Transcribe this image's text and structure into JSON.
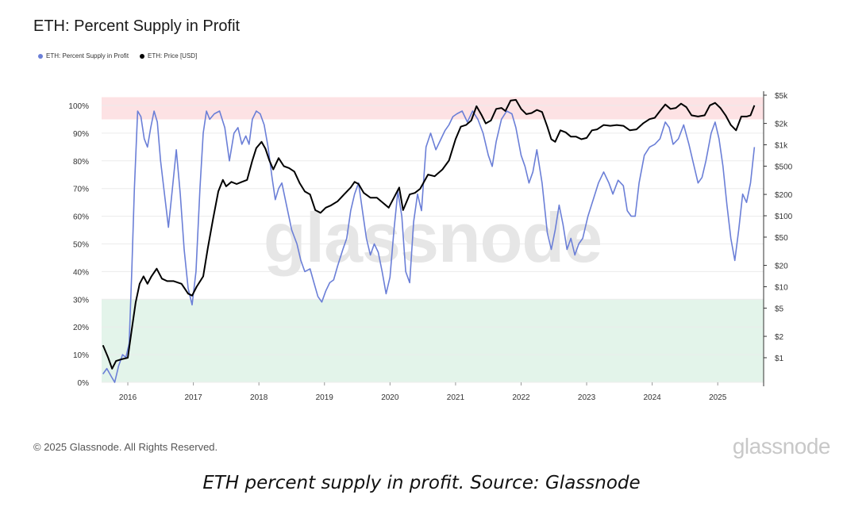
{
  "header": {
    "title": "ETH: Percent Supply in Profit"
  },
  "legend": [
    {
      "label": "ETH: Percent Supply in Profit",
      "color": "#6b7fd7"
    },
    {
      "label": "ETH: Price [USD]",
      "color": "#000000"
    }
  ],
  "watermark": "glassnode",
  "footer": {
    "copyright": "© 2025 Glassnode. All Rights Reserved.",
    "brand": "glassnode",
    "caption": "ETH percent supply in profit. Source: Glassnode"
  },
  "colors": {
    "profit_line": "#6b7fd7",
    "price_line": "#000000",
    "high_band": "#fde2e4",
    "low_band": "#e3f4ea"
  },
  "chart_data": {
    "type": "line",
    "x_range": [
      2015.6,
      2025.7
    ],
    "x_ticks": [
      "2016",
      "2017",
      "2018",
      "2019",
      "2020",
      "2021",
      "2022",
      "2023",
      "2024",
      "2025"
    ],
    "y_left_range": [
      0,
      100
    ],
    "y_left_ticks": [
      "0%",
      "10%",
      "20%",
      "30%",
      "40%",
      "50%",
      "60%",
      "70%",
      "80%",
      "90%",
      "100%"
    ],
    "y_right_scale": "log",
    "y_right_range": [
      0.45,
      5000
    ],
    "y_right_ticks": [
      {
        "label": "$1",
        "value": 1
      },
      {
        "label": "$2",
        "value": 2
      },
      {
        "label": "$5",
        "value": 5
      },
      {
        "label": "$10",
        "value": 10
      },
      {
        "label": "$20",
        "value": 20
      },
      {
        "label": "$50",
        "value": 50
      },
      {
        "label": "$100",
        "value": 100
      },
      {
        "label": "$200",
        "value": 200
      },
      {
        "label": "$500",
        "value": 500
      },
      {
        "label": "$1k",
        "value": 1000
      },
      {
        "label": "$2k",
        "value": 2000
      },
      {
        "label": "$5k",
        "value": 5000
      }
    ],
    "bands": [
      {
        "from": 95,
        "to": 103,
        "color": "#fde2e4"
      },
      {
        "from": 0,
        "to": 30,
        "color": "#e3f4ea"
      }
    ],
    "grid": true,
    "legend_position": "top-left",
    "series": [
      {
        "name": "ETH: Percent Supply in Profit",
        "axis": "left",
        "color": "#6b7fd7",
        "points": [
          [
            2015.62,
            3
          ],
          [
            2015.68,
            5
          ],
          [
            2015.75,
            2
          ],
          [
            2015.8,
            0
          ],
          [
            2015.86,
            6
          ],
          [
            2015.92,
            10
          ],
          [
            2015.97,
            9
          ],
          [
            2016.02,
            14
          ],
          [
            2016.06,
            40
          ],
          [
            2016.1,
            70
          ],
          [
            2016.15,
            98
          ],
          [
            2016.2,
            96
          ],
          [
            2016.25,
            88
          ],
          [
            2016.3,
            85
          ],
          [
            2016.35,
            92
          ],
          [
            2016.4,
            98
          ],
          [
            2016.45,
            94
          ],
          [
            2016.5,
            80
          ],
          [
            2016.55,
            70
          ],
          [
            2016.62,
            56
          ],
          [
            2016.68,
            70
          ],
          [
            2016.74,
            84
          ],
          [
            2016.8,
            68
          ],
          [
            2016.86,
            48
          ],
          [
            2016.92,
            34
          ],
          [
            2016.98,
            28
          ],
          [
            2017.04,
            40
          ],
          [
            2017.1,
            70
          ],
          [
            2017.15,
            90
          ],
          [
            2017.2,
            98
          ],
          [
            2017.25,
            95
          ],
          [
            2017.32,
            97
          ],
          [
            2017.4,
            98
          ],
          [
            2017.48,
            92
          ],
          [
            2017.55,
            80
          ],
          [
            2017.62,
            90
          ],
          [
            2017.68,
            92
          ],
          [
            2017.74,
            86
          ],
          [
            2017.8,
            89
          ],
          [
            2017.85,
            86
          ],
          [
            2017.9,
            95
          ],
          [
            2017.96,
            98
          ],
          [
            2018.02,
            97
          ],
          [
            2018.08,
            93
          ],
          [
            2018.14,
            85
          ],
          [
            2018.2,
            74
          ],
          [
            2018.25,
            66
          ],
          [
            2018.3,
            70
          ],
          [
            2018.35,
            72
          ],
          [
            2018.42,
            64
          ],
          [
            2018.5,
            55
          ],
          [
            2018.58,
            50
          ],
          [
            2018.64,
            44
          ],
          [
            2018.7,
            40
          ],
          [
            2018.78,
            41
          ],
          [
            2018.84,
            36
          ],
          [
            2018.9,
            31
          ],
          [
            2018.96,
            29
          ],
          [
            2019.02,
            33
          ],
          [
            2019.08,
            36
          ],
          [
            2019.14,
            37
          ],
          [
            2019.2,
            42
          ],
          [
            2019.28,
            48
          ],
          [
            2019.34,
            52
          ],
          [
            2019.4,
            62
          ],
          [
            2019.46,
            68
          ],
          [
            2019.52,
            72
          ],
          [
            2019.58,
            62
          ],
          [
            2019.64,
            52
          ],
          [
            2019.7,
            46
          ],
          [
            2019.76,
            50
          ],
          [
            2019.82,
            47
          ],
          [
            2019.88,
            40
          ],
          [
            2019.94,
            32
          ],
          [
            2020.0,
            38
          ],
          [
            2020.06,
            55
          ],
          [
            2020.12,
            69
          ],
          [
            2020.18,
            60
          ],
          [
            2020.24,
            40
          ],
          [
            2020.3,
            36
          ],
          [
            2020.36,
            58
          ],
          [
            2020.42,
            68
          ],
          [
            2020.48,
            62
          ],
          [
            2020.55,
            85
          ],
          [
            2020.62,
            90
          ],
          [
            2020.7,
            84
          ],
          [
            2020.78,
            88
          ],
          [
            2020.84,
            91
          ],
          [
            2020.9,
            93
          ],
          [
            2020.96,
            96
          ],
          [
            2021.02,
            97
          ],
          [
            2021.1,
            98
          ],
          [
            2021.18,
            94
          ],
          [
            2021.26,
            98
          ],
          [
            2021.34,
            95
          ],
          [
            2021.42,
            90
          ],
          [
            2021.5,
            82
          ],
          [
            2021.56,
            78
          ],
          [
            2021.62,
            87
          ],
          [
            2021.7,
            95
          ],
          [
            2021.78,
            98
          ],
          [
            2021.86,
            97
          ],
          [
            2021.92,
            92
          ],
          [
            2022.0,
            82
          ],
          [
            2022.06,
            78
          ],
          [
            2022.12,
            72
          ],
          [
            2022.18,
            76
          ],
          [
            2022.24,
            84
          ],
          [
            2022.32,
            72
          ],
          [
            2022.4,
            54
          ],
          [
            2022.46,
            48
          ],
          [
            2022.52,
            55
          ],
          [
            2022.58,
            64
          ],
          [
            2022.64,
            57
          ],
          [
            2022.7,
            48
          ],
          [
            2022.76,
            52
          ],
          [
            2022.82,
            46
          ],
          [
            2022.88,
            50
          ],
          [
            2022.94,
            52
          ],
          [
            2023.02,
            60
          ],
          [
            2023.1,
            66
          ],
          [
            2023.18,
            72
          ],
          [
            2023.26,
            76
          ],
          [
            2023.34,
            72
          ],
          [
            2023.4,
            68
          ],
          [
            2023.48,
            73
          ],
          [
            2023.56,
            71
          ],
          [
            2023.62,
            62
          ],
          [
            2023.68,
            60
          ],
          [
            2023.74,
            60
          ],
          [
            2023.8,
            72
          ],
          [
            2023.88,
            82
          ],
          [
            2023.96,
            85
          ],
          [
            2024.04,
            86
          ],
          [
            2024.12,
            88
          ],
          [
            2024.2,
            94
          ],
          [
            2024.26,
            92
          ],
          [
            2024.32,
            86
          ],
          [
            2024.4,
            88
          ],
          [
            2024.48,
            93
          ],
          [
            2024.56,
            86
          ],
          [
            2024.62,
            80
          ],
          [
            2024.7,
            72
          ],
          [
            2024.76,
            74
          ],
          [
            2024.82,
            80
          ],
          [
            2024.9,
            90
          ],
          [
            2024.96,
            94
          ],
          [
            2025.02,
            88
          ],
          [
            2025.08,
            78
          ],
          [
            2025.14,
            64
          ],
          [
            2025.2,
            52
          ],
          [
            2025.26,
            44
          ],
          [
            2025.32,
            55
          ],
          [
            2025.38,
            68
          ],
          [
            2025.44,
            65
          ],
          [
            2025.5,
            72
          ],
          [
            2025.56,
            85
          ]
        ]
      },
      {
        "name": "ETH: Price [USD]",
        "axis": "right",
        "color": "#000000",
        "points": [
          [
            2015.62,
            1.5
          ],
          [
            2015.7,
            1
          ],
          [
            2015.76,
            0.7
          ],
          [
            2015.82,
            0.9
          ],
          [
            2015.9,
            0.95
          ],
          [
            2016.0,
            1
          ],
          [
            2016.06,
            2.5
          ],
          [
            2016.12,
            6
          ],
          [
            2016.18,
            11
          ],
          [
            2016.24,
            14
          ],
          [
            2016.3,
            11
          ],
          [
            2016.36,
            14
          ],
          [
            2016.44,
            18
          ],
          [
            2016.52,
            13
          ],
          [
            2016.6,
            12
          ],
          [
            2016.7,
            12
          ],
          [
            2016.82,
            11
          ],
          [
            2016.92,
            8
          ],
          [
            2016.98,
            7.5
          ],
          [
            2017.05,
            10
          ],
          [
            2017.15,
            14
          ],
          [
            2017.22,
            35
          ],
          [
            2017.3,
            90
          ],
          [
            2017.38,
            220
          ],
          [
            2017.45,
            320
          ],
          [
            2017.5,
            260
          ],
          [
            2017.58,
            300
          ],
          [
            2017.66,
            280
          ],
          [
            2017.74,
            300
          ],
          [
            2017.82,
            320
          ],
          [
            2017.9,
            600
          ],
          [
            2017.96,
            900
          ],
          [
            2018.04,
            1100
          ],
          [
            2018.1,
            880
          ],
          [
            2018.16,
            600
          ],
          [
            2018.22,
            450
          ],
          [
            2018.3,
            650
          ],
          [
            2018.38,
            500
          ],
          [
            2018.46,
            470
          ],
          [
            2018.54,
            420
          ],
          [
            2018.62,
            290
          ],
          [
            2018.7,
            220
          ],
          [
            2018.78,
            200
          ],
          [
            2018.86,
            120
          ],
          [
            2018.94,
            110
          ],
          [
            2019.02,
            130
          ],
          [
            2019.1,
            140
          ],
          [
            2019.2,
            160
          ],
          [
            2019.3,
            200
          ],
          [
            2019.4,
            250
          ],
          [
            2019.46,
            300
          ],
          [
            2019.52,
            280
          ],
          [
            2019.6,
            210
          ],
          [
            2019.7,
            180
          ],
          [
            2019.8,
            180
          ],
          [
            2019.9,
            150
          ],
          [
            2019.98,
            130
          ],
          [
            2020.06,
            180
          ],
          [
            2020.14,
            250
          ],
          [
            2020.2,
            120
          ],
          [
            2020.3,
            200
          ],
          [
            2020.38,
            210
          ],
          [
            2020.46,
            240
          ],
          [
            2020.58,
            380
          ],
          [
            2020.68,
            360
          ],
          [
            2020.8,
            450
          ],
          [
            2020.9,
            600
          ],
          [
            2021.0,
            1200
          ],
          [
            2021.08,
            1800
          ],
          [
            2021.16,
            1900
          ],
          [
            2021.24,
            2200
          ],
          [
            2021.32,
            3500
          ],
          [
            2021.4,
            2600
          ],
          [
            2021.46,
            2000
          ],
          [
            2021.54,
            2200
          ],
          [
            2021.62,
            3200
          ],
          [
            2021.7,
            3300
          ],
          [
            2021.76,
            3000
          ],
          [
            2021.84,
            4200
          ],
          [
            2021.92,
            4300
          ],
          [
            2022.0,
            3200
          ],
          [
            2022.08,
            2700
          ],
          [
            2022.16,
            2800
          ],
          [
            2022.24,
            3100
          ],
          [
            2022.32,
            2900
          ],
          [
            2022.4,
            1800
          ],
          [
            2022.46,
            1200
          ],
          [
            2022.52,
            1100
          ],
          [
            2022.6,
            1600
          ],
          [
            2022.68,
            1500
          ],
          [
            2022.76,
            1300
          ],
          [
            2022.84,
            1300
          ],
          [
            2022.92,
            1200
          ],
          [
            2023.0,
            1250
          ],
          [
            2023.08,
            1600
          ],
          [
            2023.16,
            1650
          ],
          [
            2023.26,
            1900
          ],
          [
            2023.36,
            1850
          ],
          [
            2023.46,
            1900
          ],
          [
            2023.56,
            1850
          ],
          [
            2023.66,
            1600
          ],
          [
            2023.76,
            1650
          ],
          [
            2023.86,
            2000
          ],
          [
            2023.96,
            2300
          ],
          [
            2024.04,
            2400
          ],
          [
            2024.12,
            3000
          ],
          [
            2024.2,
            3700
          ],
          [
            2024.28,
            3200
          ],
          [
            2024.36,
            3300
          ],
          [
            2024.44,
            3800
          ],
          [
            2024.52,
            3400
          ],
          [
            2024.6,
            2600
          ],
          [
            2024.7,
            2500
          ],
          [
            2024.8,
            2600
          ],
          [
            2024.88,
            3600
          ],
          [
            2024.96,
            3900
          ],
          [
            2025.04,
            3300
          ],
          [
            2025.12,
            2600
          ],
          [
            2025.2,
            1900
          ],
          [
            2025.28,
            1600
          ],
          [
            2025.36,
            2500
          ],
          [
            2025.44,
            2500
          ],
          [
            2025.5,
            2600
          ],
          [
            2025.56,
            3600
          ]
        ]
      }
    ]
  }
}
